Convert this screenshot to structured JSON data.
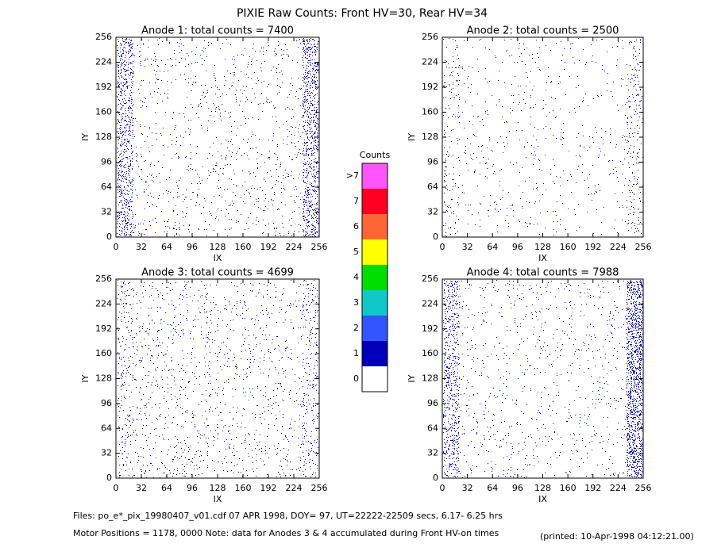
{
  "title": "PIXIE Raw Counts:  Front HV=30, Rear HV=34",
  "chart_data": [
    {
      "type": "scatter",
      "title": "Anode 1: total counts = 7400",
      "x_label": "IX",
      "y_label": "IY",
      "color": "#0000cc",
      "xlim": [
        0,
        256
      ],
      "ylim": [
        0,
        256
      ],
      "xticks": [
        0,
        32,
        64,
        96,
        128,
        160,
        192,
        224,
        256
      ],
      "yticks": [
        0,
        32,
        64,
        96,
        128,
        160,
        192,
        224,
        256
      ]
    },
    {
      "type": "scatter",
      "title": "Anode 2: total counts = 2500",
      "x_label": "IX",
      "y_label": "IY",
      "color": "#0000cc",
      "xlim": [
        0,
        256
      ],
      "ylim": [
        0,
        256
      ],
      "xticks": [
        0,
        32,
        64,
        96,
        128,
        160,
        192,
        224,
        256
      ],
      "yticks": [
        0,
        32,
        64,
        96,
        128,
        160,
        192,
        224,
        256
      ]
    },
    {
      "type": "scatter",
      "title": "Anode 3: total counts = 4699",
      "x_label": "IX",
      "y_label": "IY",
      "color": "#0000cc",
      "xlim": [
        0,
        256
      ],
      "ylim": [
        0,
        256
      ],
      "xticks": [
        0,
        32,
        64,
        96,
        128,
        160,
        192,
        224,
        256
      ],
      "yticks": [
        0,
        32,
        64,
        96,
        128,
        160,
        192,
        224,
        256
      ]
    },
    {
      "type": "scatter",
      "title": "Anode 4: total counts = 7988",
      "x_label": "IX",
      "y_label": "IY",
      "color": "#0000cc",
      "xlim": [
        0,
        256
      ],
      "ylim": [
        0,
        256
      ],
      "xticks": [
        0,
        32,
        64,
        96,
        128,
        160,
        192,
        224,
        256
      ],
      "yticks": [
        0,
        32,
        64,
        96,
        128,
        160,
        192,
        224,
        256
      ]
    }
  ],
  "colorbar": {
    "title": "Counts",
    "levels": [
      0,
      1,
      2,
      3,
      4,
      5,
      6,
      7
    ],
    "overflow_label": ">7",
    "colors": [
      "#ffffff",
      "#0000bb",
      "#3355ff",
      "#11c8c8",
      "#00dd00",
      "#ffff00",
      "#ff6633",
      "#ff0022",
      "#ff55ff"
    ]
  },
  "footer": {
    "files": "Files: po_e*_pix_19980407_v01.cdf    07 APR 1998, DOY= 97, UT=22222-22509 secs,  6.17- 6.25 hrs",
    "motor": "Motor Positions = 1178, 0000   Note: data for Anodes 3 & 4 accumulated during Front HV-on times",
    "printed": "(printed: 10-Apr-1998 04:12:21.00)"
  }
}
